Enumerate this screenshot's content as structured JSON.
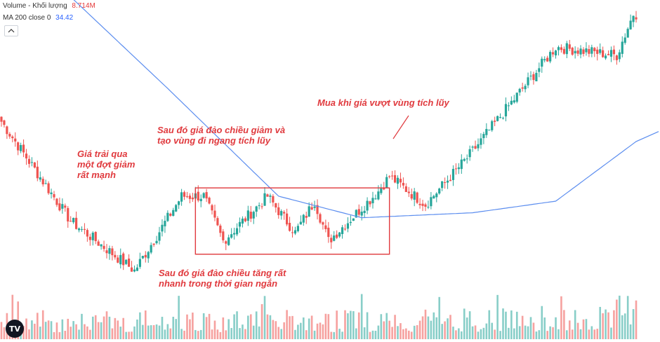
{
  "legend": {
    "volume_label": "Volume - Khối lượng",
    "volume_value": "8.714M",
    "ma_label": "MA 200 close 0",
    "ma_value": "34.42"
  },
  "annotations": {
    "drop": "Giá trải qua\nmột đợt giảm\nrất mạnh",
    "reverse_up": "Sau đó giá đảo chiều tăng rất\nnhanh trong thời gian ngắn",
    "reverse_down": "Sau đó giá đảo chiều giảm và\ntạo vùng đi ngang tích lũy",
    "buy": "Mua khi giá vượt vùng tích lũy"
  },
  "logo_text": "TV",
  "colors": {
    "up": "#26a69a",
    "down": "#ef5350",
    "ma": "#5b8def",
    "annotation": "#e03a3e",
    "box": "#e03a3e"
  },
  "chart_data": {
    "type": "candlestick",
    "title": "",
    "indicators": [
      "Volume",
      "MA 200"
    ],
    "price_path_keypoints": [
      {
        "bar": 0,
        "price": 100
      },
      {
        "bar": 25,
        "price": 40
      },
      {
        "bar": 48,
        "price": 10
      },
      {
        "bar": 65,
        "price": 55
      },
      {
        "bar": 73,
        "price": 55
      },
      {
        "bar": 80,
        "price": 28
      },
      {
        "bar": 96,
        "price": 55
      },
      {
        "bar": 106,
        "price": 33
      },
      {
        "bar": 113,
        "price": 52
      },
      {
        "bar": 118,
        "price": 28
      },
      {
        "bar": 136,
        "price": 58
      },
      {
        "bar": 140,
        "price": 67
      },
      {
        "bar": 153,
        "price": 50
      },
      {
        "bar": 168,
        "price": 78
      },
      {
        "bar": 200,
        "price": 145
      },
      {
        "bar": 222,
        "price": 140
      },
      {
        "bar": 228,
        "price": 165
      }
    ],
    "ma200_keypoints": [
      {
        "bar": 22,
        "price": 180
      },
      {
        "bar": 60,
        "price": 120
      },
      {
        "bar": 100,
        "price": 55
      },
      {
        "bar": 130,
        "price": 42
      },
      {
        "bar": 170,
        "price": 45
      },
      {
        "bar": 200,
        "price": 52
      },
      {
        "bar": 229,
        "price": 88
      }
    ],
    "accumulation_zone": {
      "bar_start": 70,
      "bar_end": 140,
      "price_low": 20,
      "price_high": 60
    }
  }
}
